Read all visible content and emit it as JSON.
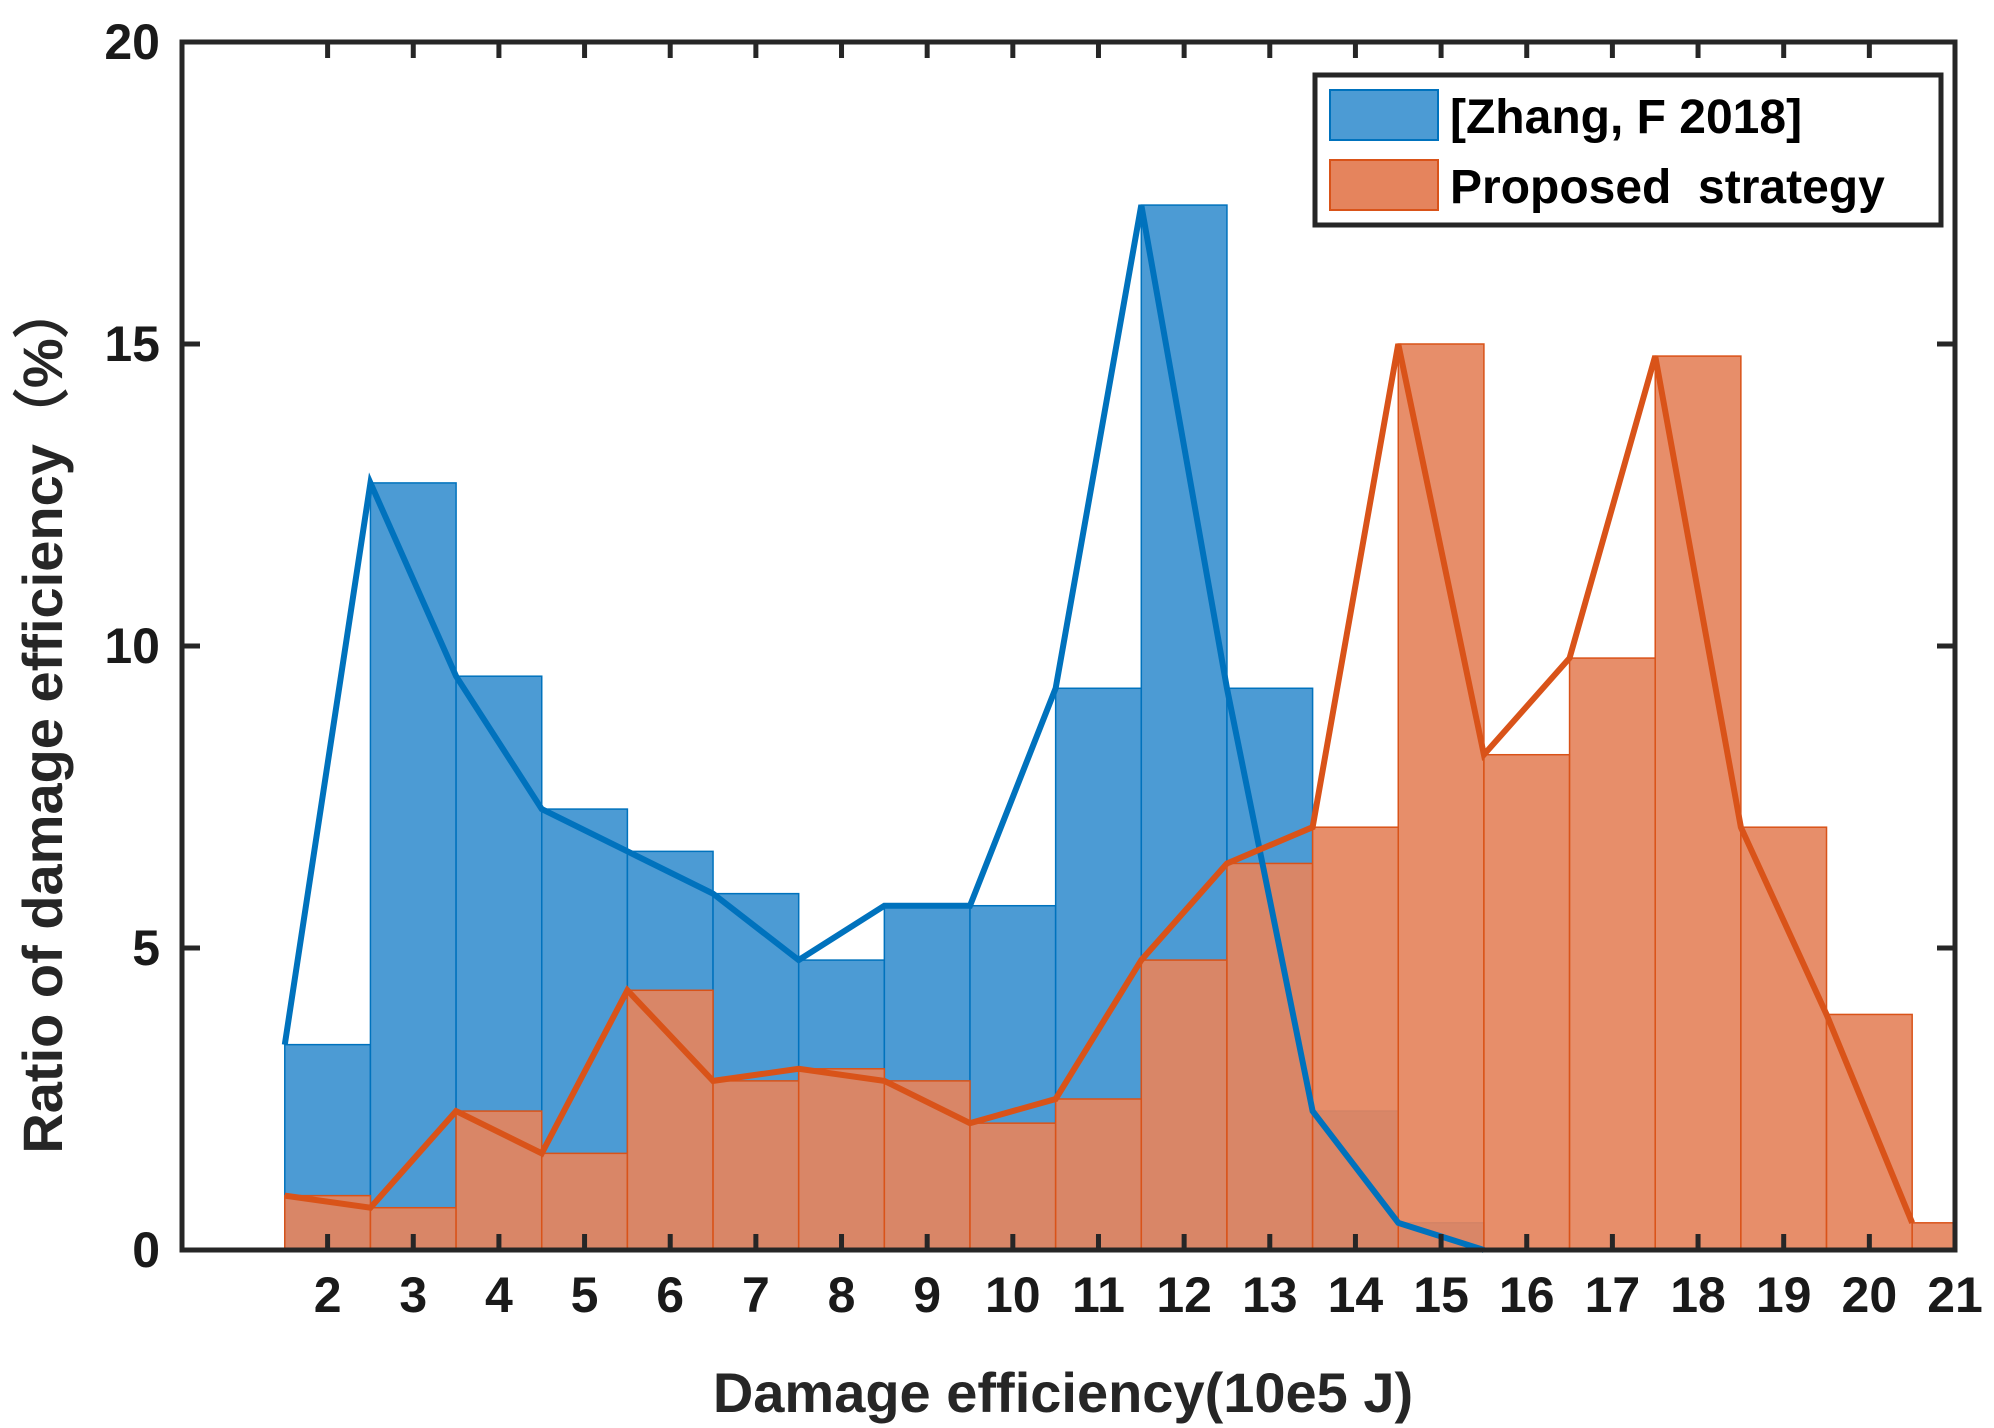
{
  "chart_data": {
    "type": "bar",
    "xlabel": "Damage efficiency(10e5 J)",
    "ylabel": "Ratio of damage efficiency（%）",
    "xlim": [
      0.3,
      21
    ],
    "ylim": [
      0,
      20
    ],
    "xticks": [
      "2",
      "3",
      "4",
      "5",
      "6",
      "7",
      "8",
      "9",
      "10",
      "11",
      "12",
      "13",
      "14",
      "15",
      "16",
      "17",
      "18",
      "19",
      "20",
      "21"
    ],
    "yticks": [
      "0",
      "5",
      "10",
      "15",
      "20"
    ],
    "bin_edges": [
      1.5,
      2.5,
      3.5,
      4.5,
      5.5,
      6.5,
      7.5,
      8.5,
      9.5,
      10.5,
      11.5,
      12.5,
      13.5,
      14.5,
      15.5,
      16.5,
      17.5,
      18.5,
      19.5,
      20.5,
      21.0
    ],
    "legend_position": "top-right",
    "grid": false,
    "series": [
      {
        "name": "[Zhang, F 2018]",
        "color": "#0072BD",
        "bar_color": "#4C9BD4",
        "bar_values": [
          3.4,
          12.7,
          9.5,
          7.3,
          6.6,
          5.9,
          4.8,
          5.7,
          5.7,
          9.3,
          17.3,
          9.3,
          2.3,
          0.45,
          0,
          0,
          0,
          0,
          0,
          0
        ],
        "line_x": [
          1.5,
          2.5,
          3.5,
          4.5,
          5.5,
          6.5,
          7.5,
          8.5,
          9.5,
          10.5,
          11.5,
          12.5,
          13.5,
          14.5,
          15.5
        ],
        "line_y": [
          3.4,
          12.7,
          9.5,
          7.3,
          6.6,
          5.9,
          4.8,
          5.7,
          5.7,
          9.3,
          17.3,
          9.3,
          2.3,
          0.45,
          0
        ]
      },
      {
        "name": "Proposed  strategy",
        "color": "#D95319",
        "bar_color": "#E5845D",
        "bar_values": [
          0.9,
          0.7,
          2.3,
          1.6,
          4.3,
          2.8,
          3.0,
          2.8,
          2.1,
          2.5,
          4.8,
          6.4,
          7.0,
          15.0,
          8.2,
          9.8,
          14.8,
          7.0,
          3.9,
          0.45
        ],
        "line_x": [
          1.5,
          2.5,
          3.5,
          4.5,
          5.5,
          6.5,
          7.5,
          8.5,
          9.5,
          10.5,
          11.5,
          12.5,
          13.5,
          14.5,
          15.5,
          16.5,
          17.5,
          18.5,
          19.5,
          20.5
        ],
        "line_y": [
          0.9,
          0.7,
          2.3,
          1.6,
          4.3,
          2.8,
          3.0,
          2.8,
          2.1,
          2.5,
          4.8,
          6.4,
          7.0,
          15.0,
          8.2,
          9.8,
          14.8,
          7.0,
          3.9,
          0.45
        ]
      }
    ]
  }
}
